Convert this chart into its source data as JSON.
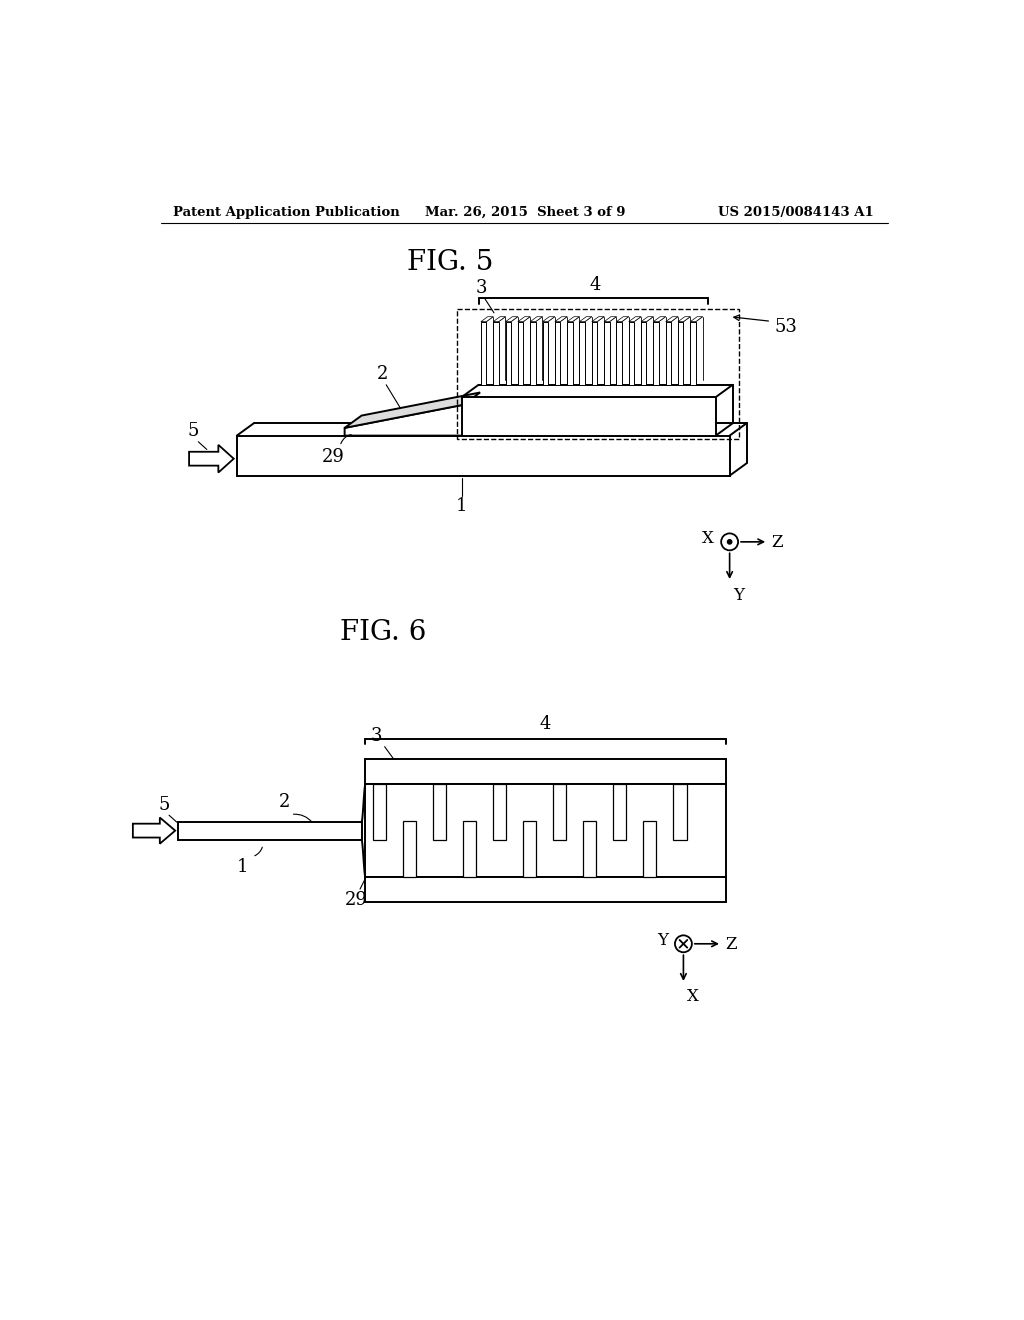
{
  "bg_color": "#ffffff",
  "header_left": "Patent Application Publication",
  "header_center": "Mar. 26, 2015  Sheet 3 of 9",
  "header_right": "US 2015/0084143 A1",
  "fig5_title": "FIG. 5",
  "fig6_title": "FIG. 6",
  "line_color": "#000000",
  "line_width": 1.4
}
